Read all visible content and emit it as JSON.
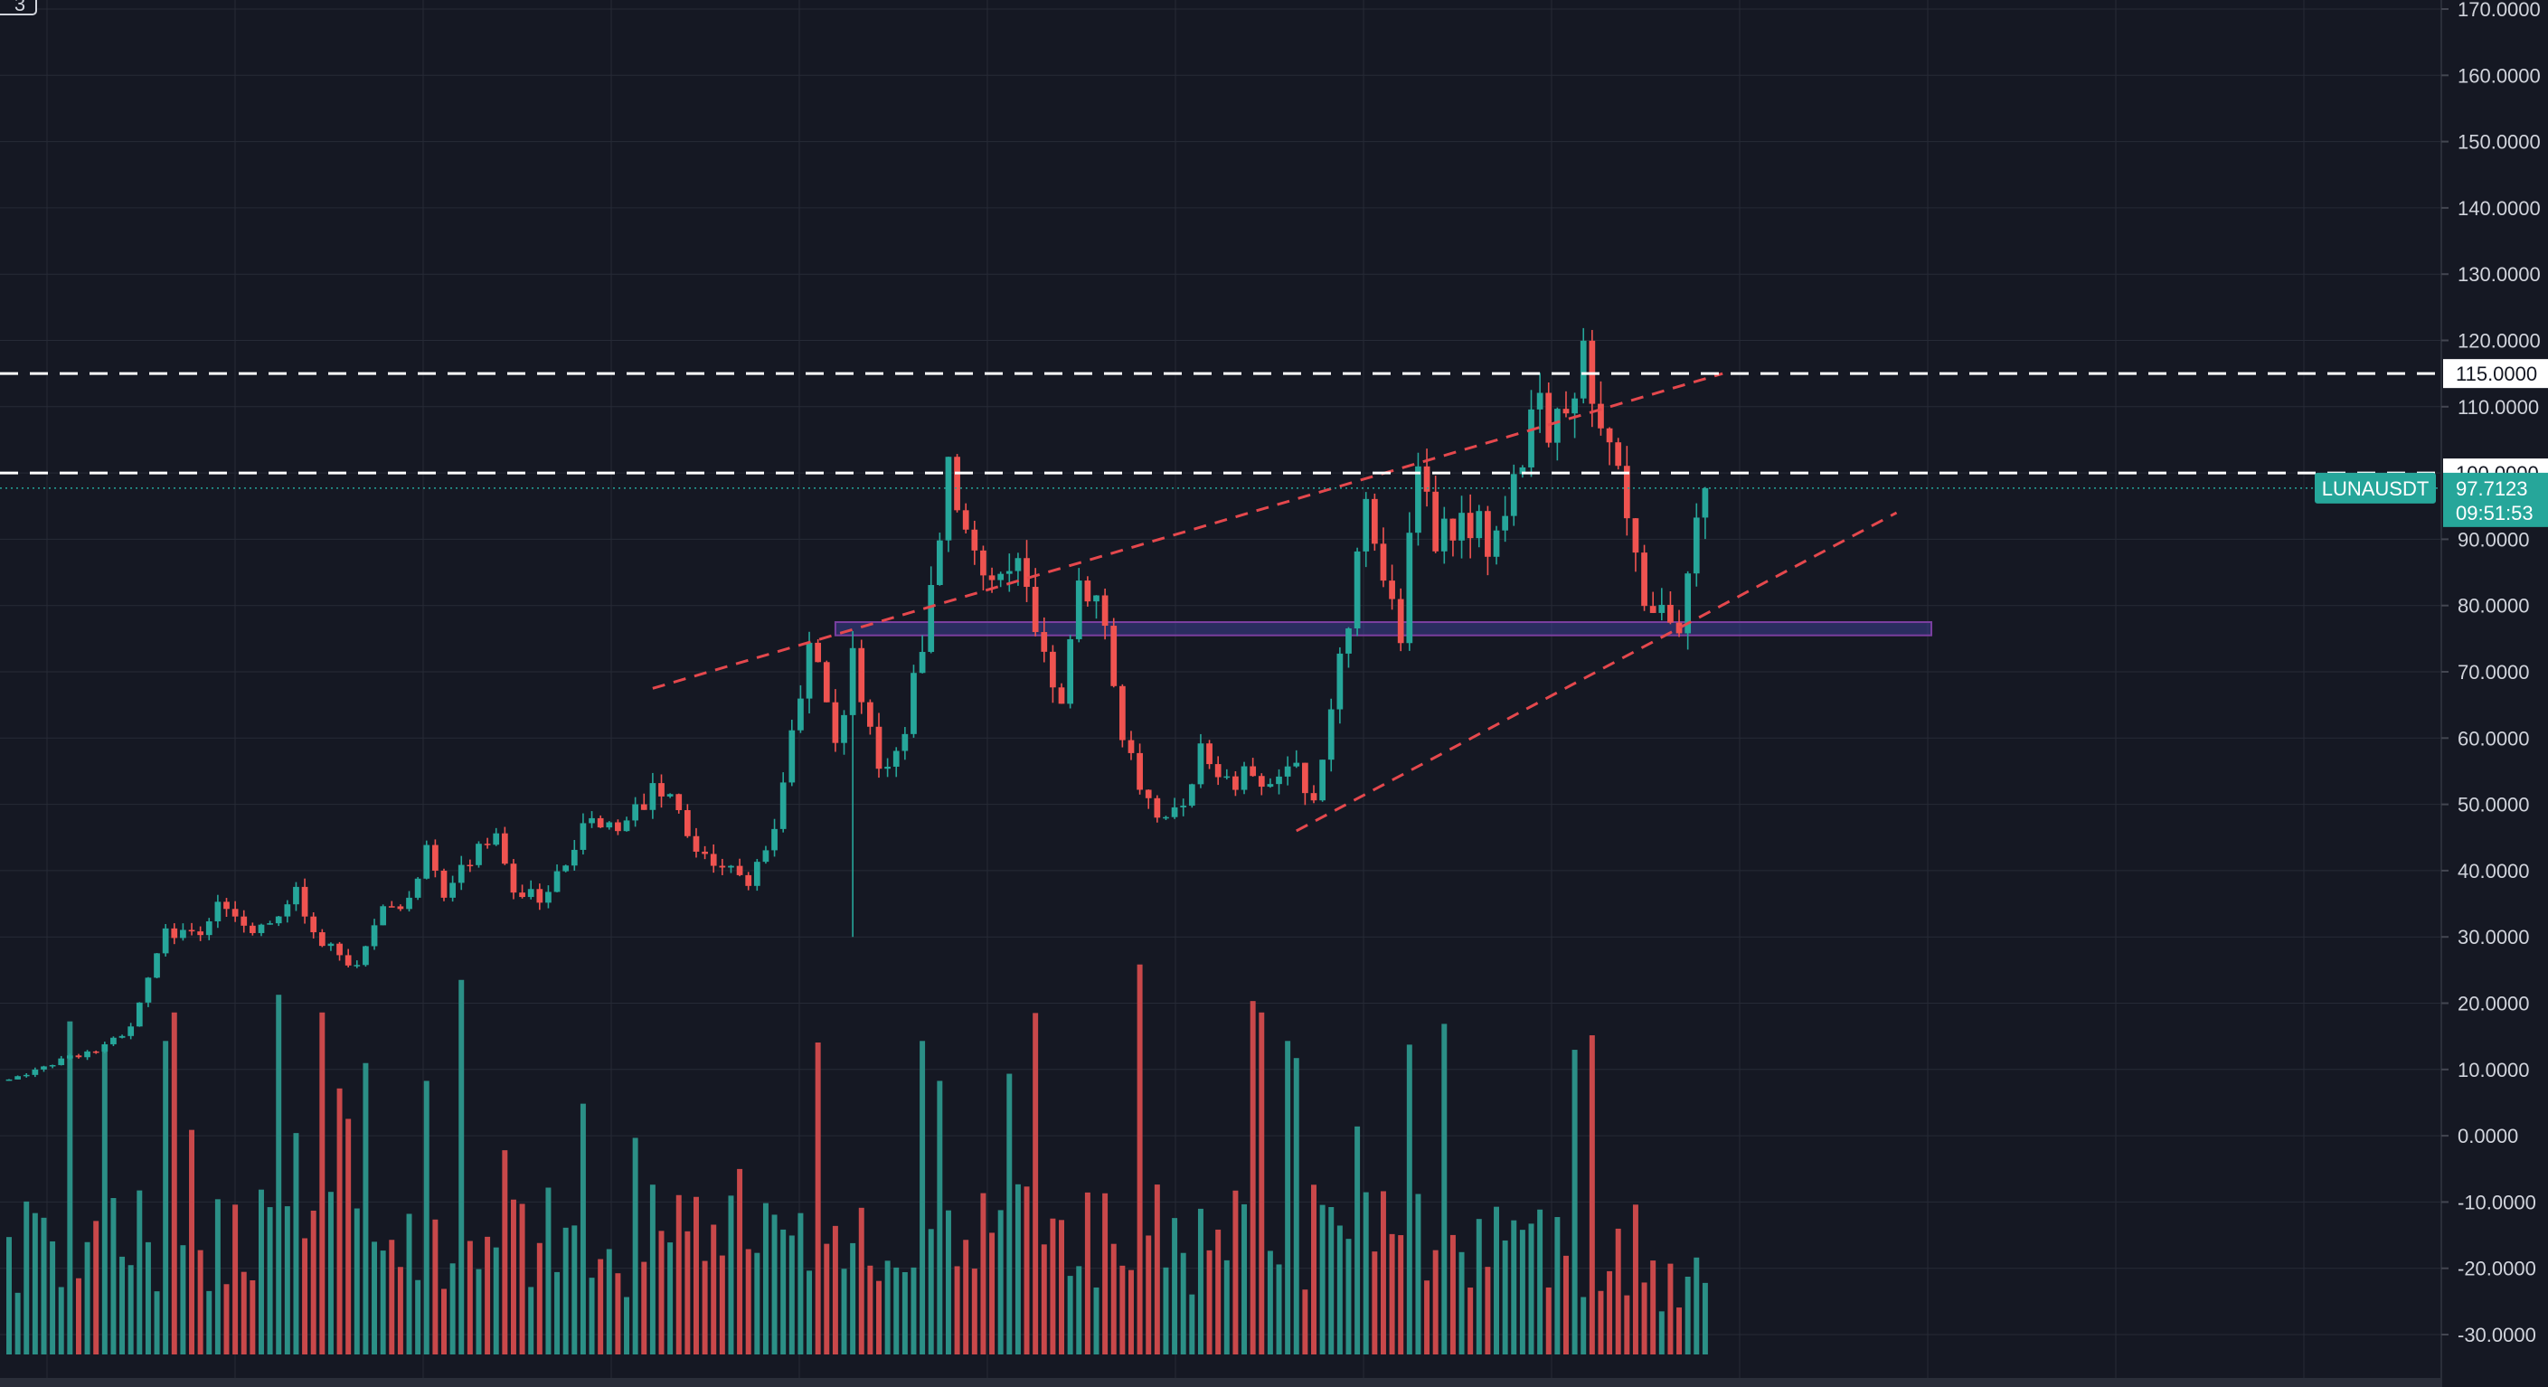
{
  "corner_badge": "3",
  "colors": {
    "background": "#151823",
    "grid": "#262a36",
    "axis_text": "#d1d4dc",
    "up": "#26a69a",
    "down": "#ef5350",
    "volume_up": "#2b8f86",
    "volume_down": "#c9484a",
    "trendline": "#e5484d",
    "support_zone_fill": "#3c3f92",
    "support_zone_border": "#7b3fa0",
    "level_line": "#ffffff",
    "price_badge": "#26a69a"
  },
  "chart_data": {
    "type": "candlestick",
    "symbol": "LUNAUSDT",
    "current_price": "97.7123",
    "countdown": "09:51:53",
    "ylim": [
      -33,
      170
    ],
    "y_ticks": [
      {
        "value": 170,
        "label": "170.0000"
      },
      {
        "value": 160,
        "label": "160.0000"
      },
      {
        "value": 150,
        "label": "150.0000"
      },
      {
        "value": 140,
        "label": "140.0000"
      },
      {
        "value": 130,
        "label": "130.0000"
      },
      {
        "value": 120,
        "label": "120.0000"
      },
      {
        "value": 110,
        "label": "110.0000"
      },
      {
        "value": 90,
        "label": "90.0000"
      },
      {
        "value": 80,
        "label": "80.0000"
      },
      {
        "value": 70,
        "label": "70.0000"
      },
      {
        "value": 60,
        "label": "60.0000"
      },
      {
        "value": 50,
        "label": "50.0000"
      },
      {
        "value": 40,
        "label": "40.0000"
      },
      {
        "value": 30,
        "label": "30.0000"
      },
      {
        "value": 20,
        "label": "20.0000"
      },
      {
        "value": 10,
        "label": "10.0000"
      },
      {
        "value": 0,
        "label": "0.0000"
      },
      {
        "value": -10,
        "label": "-10.0000"
      },
      {
        "value": -20,
        "label": "-20.0000"
      },
      {
        "value": -30,
        "label": "-30.0000"
      }
    ],
    "horizontal_levels": [
      {
        "value": 115,
        "label": "115.0000"
      },
      {
        "value": 100,
        "label": "100.0000"
      }
    ],
    "support_zone": {
      "from_bar": 95,
      "to_bar": 221,
      "low": 75.5,
      "high": 77.5
    },
    "trendlines": [
      {
        "name": "upper-channel",
        "from_bar": 74,
        "from_value": 67.5,
        "to_bar": 197,
        "to_value": 115
      },
      {
        "name": "lower-channel",
        "from_bar": 148,
        "from_value": 46,
        "to_bar": 217,
        "to_value": 94
      }
    ],
    "volume_baseline": -33,
    "volume_scale": 86,
    "anchors": [
      [
        0,
        8.5
      ],
      [
        4,
        10.5
      ],
      [
        10,
        13
      ],
      [
        14,
        16
      ],
      [
        16,
        24
      ],
      [
        18,
        31
      ],
      [
        22,
        30
      ],
      [
        24,
        35
      ],
      [
        28,
        31
      ],
      [
        31,
        32
      ],
      [
        33,
        38
      ],
      [
        35,
        30
      ],
      [
        40,
        25
      ],
      [
        43,
        34
      ],
      [
        46,
        36
      ],
      [
        48,
        44
      ],
      [
        50,
        37
      ],
      [
        52,
        40
      ],
      [
        56,
        46
      ],
      [
        58,
        38
      ],
      [
        61,
        35
      ],
      [
        66,
        46
      ],
      [
        71,
        48
      ],
      [
        75,
        53
      ],
      [
        80,
        42
      ],
      [
        85,
        38
      ],
      [
        88,
        46
      ],
      [
        92,
        75
      ],
      [
        95,
        58
      ],
      [
        97,
        73
      ],
      [
        100,
        56
      ],
      [
        103,
        60
      ],
      [
        105,
        75
      ],
      [
        108,
        100
      ],
      [
        112,
        82
      ],
      [
        116,
        88
      ],
      [
        119,
        72
      ],
      [
        121,
        67
      ],
      [
        123,
        86
      ],
      [
        126,
        78
      ],
      [
        128,
        60
      ],
      [
        132,
        48
      ],
      [
        135,
        49
      ],
      [
        137,
        58
      ],
      [
        141,
        54
      ],
      [
        143,
        56
      ],
      [
        145,
        52
      ],
      [
        148,
        55
      ],
      [
        150,
        49
      ],
      [
        154,
        78
      ],
      [
        156,
        93
      ],
      [
        158,
        84
      ],
      [
        160,
        76
      ],
      [
        162,
        102
      ],
      [
        164,
        90
      ],
      [
        167,
        94
      ],
      [
        170,
        90
      ],
      [
        172,
        92
      ],
      [
        175,
        110
      ],
      [
        178,
        107
      ],
      [
        181,
        117
      ],
      [
        184,
        106
      ],
      [
        186,
        95
      ],
      [
        188,
        82
      ],
      [
        190,
        80
      ],
      [
        192,
        77
      ],
      [
        194,
        93
      ],
      [
        195,
        98
      ]
    ]
  }
}
